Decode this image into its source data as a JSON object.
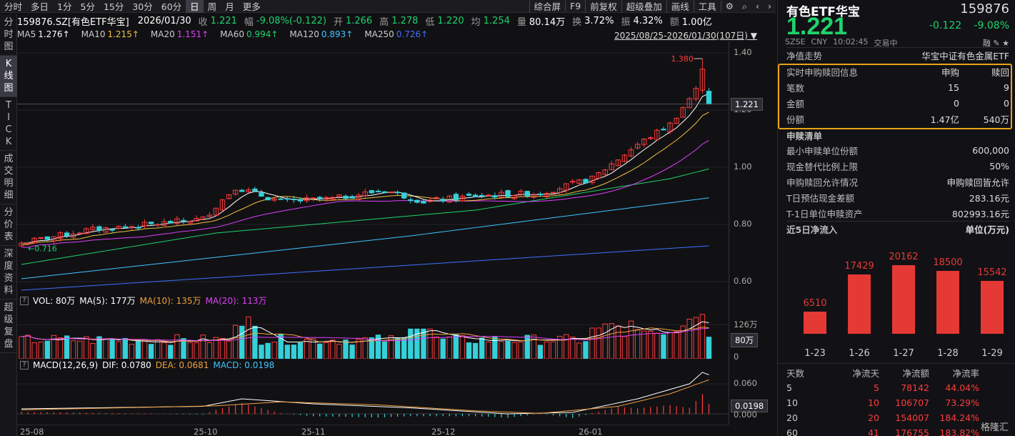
{
  "toolbar": {
    "left_tabs": [
      "分时",
      "多日",
      "1分",
      "5分",
      "15分",
      "30分",
      "60分",
      "日",
      "周",
      "月",
      "更多"
    ],
    "active_tab": "日",
    "right_tabs": [
      "综合屏",
      "F9",
      "前复权",
      "超级叠加",
      "画线",
      "工具"
    ]
  },
  "side_tabs": [
    "分时图",
    "K线图",
    "TICK",
    "成交明细",
    "分价表",
    "深度资料",
    "超级复盘"
  ],
  "active_side_tab": "K线图",
  "quote": {
    "code": "159876.SZ[有色ETF华宝]",
    "date": "2026/01/30",
    "close_label": "收",
    "close": "1.221",
    "change_label": "幅",
    "change": "-9.08%(-0.122)",
    "open_label": "开",
    "open": "1.266",
    "high_label": "高",
    "high": "1.278",
    "low_label": "低",
    "low": "1.220",
    "avg_label": "均",
    "avg": "1.254",
    "vol_label": "量",
    "vol": "80.14万",
    "turnover_label": "换",
    "turnover": "3.72%",
    "amp_label": "振",
    "amp": "4.32%",
    "amount_label": "额",
    "amount": "1.00亿"
  },
  "ma_legend": [
    {
      "label": "MA5",
      "value": "1.276",
      "color": "#ffffff"
    },
    {
      "label": "MA10",
      "value": "1.215",
      "color": "#f0c040"
    },
    {
      "label": "MA20",
      "value": "1.151",
      "color": "#e040fb"
    },
    {
      "label": "MA60",
      "value": "0.994",
      "color": "#1fd36b"
    },
    {
      "label": "MA120",
      "value": "0.893",
      "color": "#40c4ff"
    },
    {
      "label": "MA250",
      "value": "0.726",
      "color": "#3f6fff"
    }
  ],
  "range": "2025/08/25-2026/01/30(107日)",
  "price_axis": [
    "1.40",
    "1.20",
    "1.00",
    "0.80",
    "0.60"
  ],
  "current_price_tag": "1.221",
  "high_marker": "1.380",
  "low_marker": "0.716",
  "vol_legend": {
    "label": "VOL: 80万",
    "ma5": "MA(5): 177万",
    "ma10": "MA(10): 135万",
    "ma20": "MA(20): 113万"
  },
  "vol_axis": [
    "126万",
    "0"
  ],
  "vol_tag": "80万",
  "macd_legend": {
    "label": "MACD(12,26,9)",
    "dif": "DIF: 0.0780",
    "dea": "DEA: 0.0681",
    "macd": "MACD: 0.0198"
  },
  "macd_axis": [
    "0.060",
    "0.000"
  ],
  "macd_tag": "0.0198",
  "x_axis": [
    "25-08",
    "25-10",
    "25-11",
    "25-12",
    "26-01"
  ],
  "right": {
    "name": "有色ETF华宝",
    "code": "159876",
    "price": "1.221",
    "change": "-0.122",
    "change_pct": "-9.08%",
    "market": "SZSE",
    "currency": "CNY",
    "time": "10:02:45",
    "status": "交易中",
    "flags": "融 ✎ ★",
    "nav_label": "净值走势",
    "index_name": "华宝中证有色金属ETF",
    "sub_header": {
      "title": "实时申购赎回信息",
      "col1": "申购",
      "col2": "赎回"
    },
    "sub_rows": [
      {
        "k": "笔数",
        "a": "15",
        "b": "9"
      },
      {
        "k": "金额",
        "a": "0",
        "b": "0"
      },
      {
        "k": "份额",
        "a": "1.47亿",
        "b": "540万"
      }
    ],
    "list_title": "申赎清单",
    "list_rows": [
      {
        "k": "最小申赎单位份额",
        "v": "600,000"
      },
      {
        "k": "现金替代比例上限",
        "v": "50%"
      },
      {
        "k": "申购赎回允许情况",
        "v": "申购赎回皆允许"
      },
      {
        "k": "T日预估现金差额",
        "v": "283.16元"
      },
      {
        "k": "T-1日单位申赎资产",
        "v": "802993.16元"
      }
    ],
    "flow_title": "近5日净流入",
    "flow_unit": "单位(万元)",
    "flow_days": [
      {
        "date": "1-23",
        "value": 6510
      },
      {
        "date": "1-26",
        "value": 17429
      },
      {
        "date": "1-27",
        "value": 20162
      },
      {
        "date": "1-28",
        "value": 18500
      },
      {
        "date": "1-29",
        "value": 15542
      }
    ],
    "table_header": [
      "天数",
      "净流天",
      "净流额",
      "净流率"
    ],
    "table_rows": [
      [
        "5",
        "5",
        "78142",
        "44.04%"
      ],
      [
        "10",
        "10",
        "106707",
        "73.29%"
      ],
      [
        "20",
        "20",
        "154007",
        "184.24%"
      ],
      [
        "60",
        "41",
        "176755",
        "183.82%"
      ]
    ],
    "watermark": "格隆汇"
  }
}
